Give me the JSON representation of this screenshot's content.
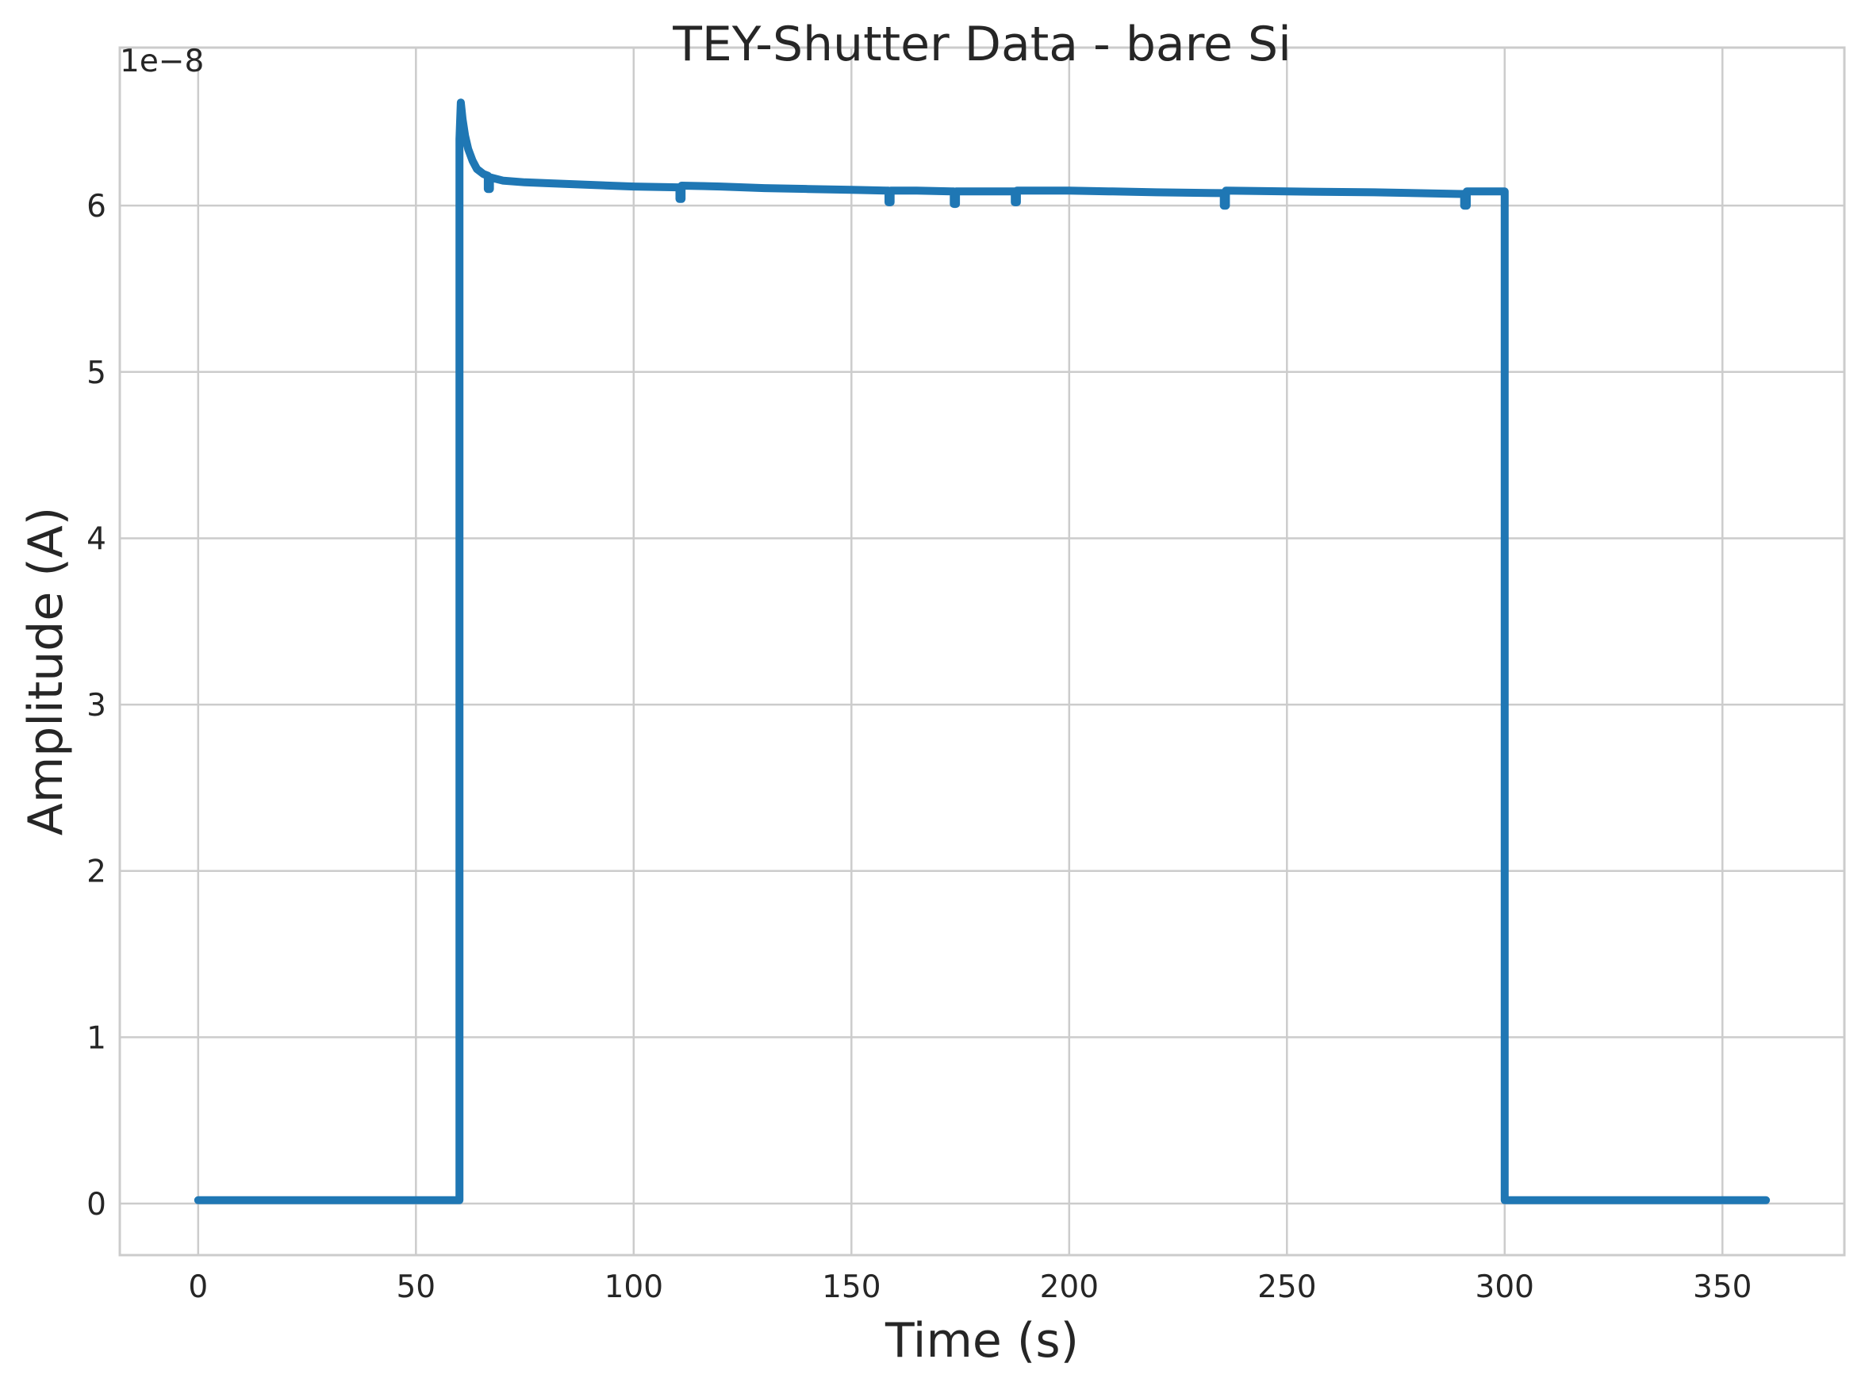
{
  "chart_data": {
    "type": "line",
    "title": "TEY-Shutter Data - bare Si",
    "xlabel": "Time (s)",
    "ylabel": "Amplitude (A)",
    "y_offset_text": "1e−8",
    "y_scale": 1e-08,
    "xlim": [
      -18,
      378
    ],
    "ylim": [
      -0.31,
      6.95
    ],
    "x_ticks": [
      0,
      50,
      100,
      150,
      200,
      250,
      300,
      350
    ],
    "x_tick_labels": [
      "0",
      "50",
      "100",
      "150",
      "200",
      "250",
      "300",
      "350"
    ],
    "y_ticks": [
      0,
      1,
      2,
      3,
      4,
      5,
      6
    ],
    "y_tick_labels": [
      "0",
      "1",
      "2",
      "3",
      "4",
      "5",
      "6"
    ],
    "grid": true,
    "series_color": "#1f77b4",
    "series": [
      {
        "x": [
          0,
          60,
          60,
          60.3,
          60.7,
          61.3,
          62,
          63,
          64,
          65.5,
          66.5,
          66.5,
          67,
          67,
          70,
          75,
          80,
          90,
          100,
          110,
          110.5,
          110.5,
          111,
          111,
          120,
          130,
          140,
          150,
          158,
          158.5,
          158.5,
          159,
          159,
          165,
          173,
          173.5,
          173.5,
          174,
          174,
          180,
          187,
          187.5,
          187.5,
          188,
          188,
          200,
          210,
          220,
          235,
          235.5,
          235.5,
          236,
          236,
          250,
          270,
          290,
          290.7,
          290.7,
          291.3,
          291.3,
          295,
          300,
          300,
          330,
          360
        ],
        "values": [
          0.02,
          0.02,
          6.4,
          6.62,
          6.52,
          6.42,
          6.34,
          6.27,
          6.22,
          6.19,
          6.18,
          6.1,
          6.1,
          6.17,
          6.15,
          6.14,
          6.135,
          6.125,
          6.115,
          6.11,
          6.11,
          6.04,
          6.04,
          6.12,
          6.115,
          6.105,
          6.1,
          6.095,
          6.09,
          6.09,
          6.02,
          6.02,
          6.09,
          6.09,
          6.085,
          6.085,
          6.01,
          6.01,
          6.085,
          6.085,
          6.085,
          6.085,
          6.02,
          6.02,
          6.09,
          6.09,
          6.085,
          6.08,
          6.075,
          6.075,
          6.0,
          6.0,
          6.09,
          6.085,
          6.08,
          6.07,
          6.07,
          6.0,
          6.0,
          6.085,
          6.085,
          6.085,
          0.02,
          0.02,
          0.02
        ]
      }
    ]
  }
}
